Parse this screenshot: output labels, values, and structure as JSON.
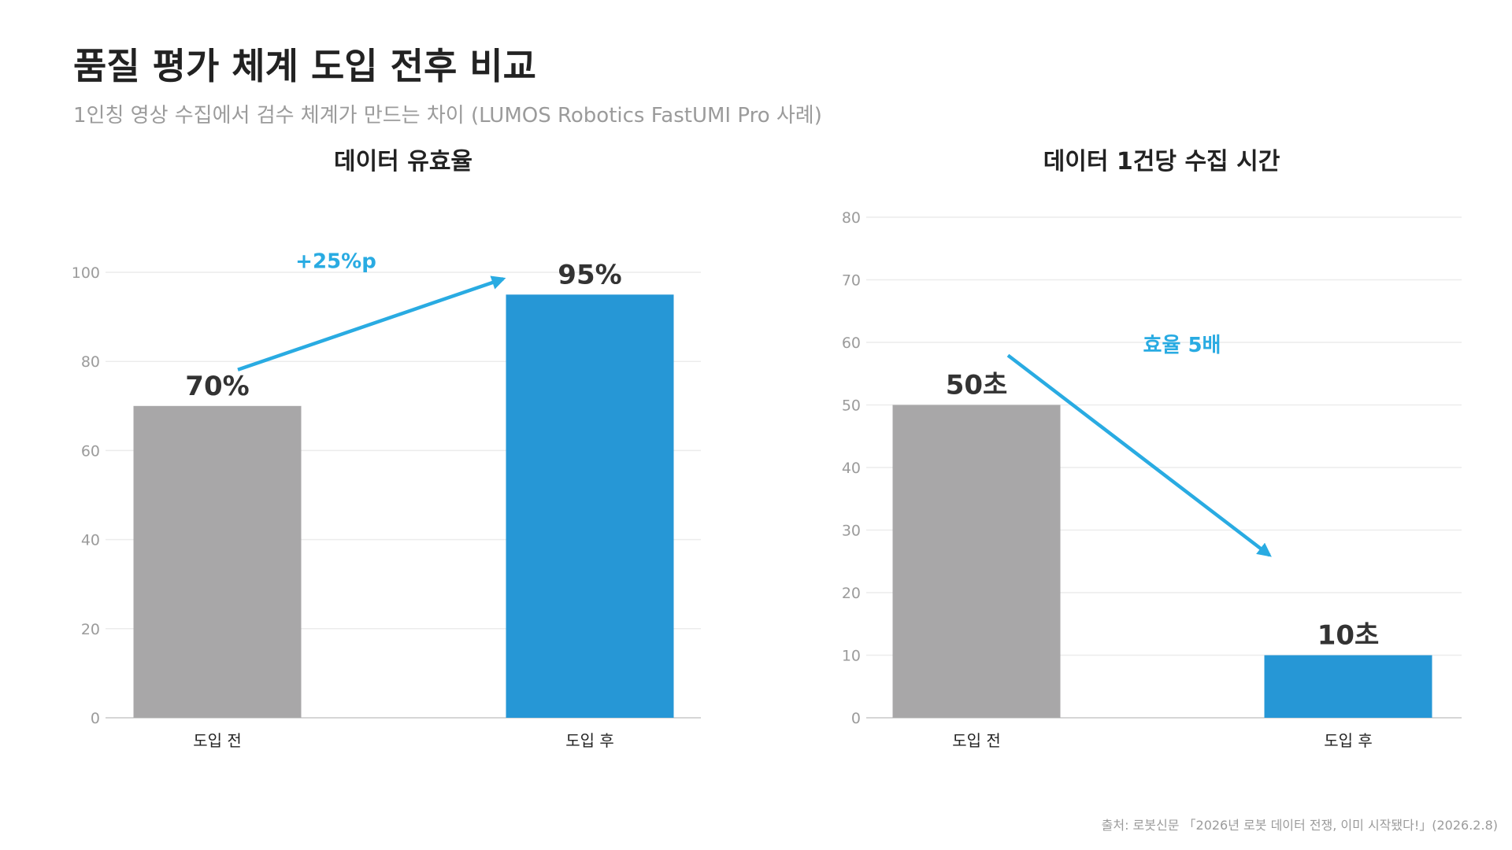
{
  "title": "품질 평가 체계 도입 전후 비교",
  "subtitle": "1인칭 영상 수집에서 검수 체계가 만드는 차이 (LUMOS Robotics FastUMI Pro 사례)",
  "source": "출처: 로봇신문 「2026년 로봇 데이터 전쟁, 이미 시작됐다!」(2026.2.8)",
  "colors": {
    "before": "#a8a7a8",
    "after": "#2697d6",
    "accent": "#29abe2"
  },
  "chart_data": [
    {
      "type": "bar",
      "title": "데이터 유효율",
      "categories": [
        "도입 전",
        "도입 후"
      ],
      "values": [
        70,
        95
      ],
      "value_labels": [
        "70%",
        "95%"
      ],
      "ylim": [
        0,
        100
      ],
      "yticks": [
        0,
        20,
        40,
        60,
        80,
        100
      ],
      "grid": true,
      "annotation": {
        "text": "+25%p",
        "direction": "up"
      }
    },
    {
      "type": "bar",
      "title": "데이터 1건당 수집 시간",
      "categories": [
        "도입 전",
        "도입 후"
      ],
      "values": [
        50,
        10
      ],
      "value_labels": [
        "50초",
        "10초"
      ],
      "ylim": [
        0,
        80
      ],
      "yticks": [
        0,
        10,
        20,
        30,
        40,
        50,
        60,
        70,
        80
      ],
      "grid": true,
      "annotation": {
        "text": "효율 5배",
        "direction": "down"
      }
    }
  ]
}
